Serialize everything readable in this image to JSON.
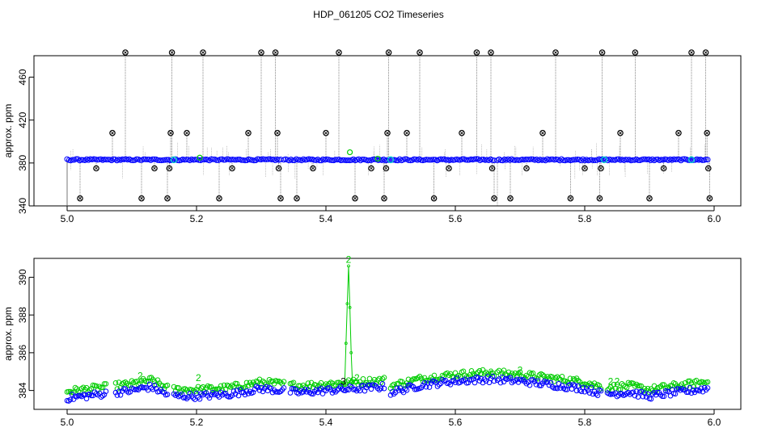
{
  "title": "HDP_061205  CO2 Timeseries",
  "colors": {
    "main": "#0000ff",
    "secondary": "#00cc00",
    "spike": "#000000",
    "highlight": "#00cccc",
    "trace": "#555555"
  },
  "chart_data": [
    {
      "type": "scatter",
      "ylabel": "approx. ppm",
      "xlim": [
        5.0,
        6.0
      ],
      "ylim": [
        340,
        480
      ],
      "xticks": [
        "5.0",
        "5.2",
        "5.4",
        "5.6",
        "5.8",
        "6.0"
      ],
      "yticks": [
        "340",
        "380",
        "420",
        "460"
      ],
      "baseline": 383,
      "segments": [
        [
          5.0,
          5.33
        ],
        [
          5.335,
          5.66
        ],
        [
          5.665,
          5.99
        ]
      ],
      "spike_points": [
        [
          5.02,
          347
        ],
        [
          5.045,
          375
        ],
        [
          5.07,
          408
        ],
        [
          5.09,
          483
        ],
        [
          5.115,
          347
        ],
        [
          5.135,
          375
        ],
        [
          5.155,
          347
        ],
        [
          5.158,
          375
        ],
        [
          5.16,
          408
        ],
        [
          5.162,
          483
        ],
        [
          5.185,
          408
        ],
        [
          5.21,
          483
        ],
        [
          5.235,
          347
        ],
        [
          5.255,
          375
        ],
        [
          5.28,
          408
        ],
        [
          5.3,
          483
        ],
        [
          5.322,
          483
        ],
        [
          5.325,
          408
        ],
        [
          5.327,
          375
        ],
        [
          5.33,
          347
        ],
        [
          5.355,
          347
        ],
        [
          5.38,
          375
        ],
        [
          5.4,
          408
        ],
        [
          5.42,
          483
        ],
        [
          5.445,
          347
        ],
        [
          5.47,
          375
        ],
        [
          5.49,
          347
        ],
        [
          5.493,
          375
        ],
        [
          5.495,
          408
        ],
        [
          5.497,
          483
        ],
        [
          5.525,
          408
        ],
        [
          5.545,
          483
        ],
        [
          5.567,
          347
        ],
        [
          5.59,
          375
        ],
        [
          5.61,
          408
        ],
        [
          5.633,
          483
        ],
        [
          5.655,
          483
        ],
        [
          5.657,
          375
        ],
        [
          5.66,
          347
        ],
        [
          5.685,
          347
        ],
        [
          5.71,
          375
        ],
        [
          5.735,
          408
        ],
        [
          5.755,
          483
        ],
        [
          5.778,
          347
        ],
        [
          5.8,
          375
        ],
        [
          5.823,
          347
        ],
        [
          5.825,
          375
        ],
        [
          5.827,
          483
        ],
        [
          5.855,
          408
        ],
        [
          5.878,
          483
        ],
        [
          5.9,
          347
        ],
        [
          5.922,
          375
        ],
        [
          5.945,
          408
        ],
        [
          5.965,
          483
        ],
        [
          5.987,
          483
        ],
        [
          5.989,
          408
        ],
        [
          5.991,
          375
        ],
        [
          5.993,
          347
        ]
      ],
      "green_points": [
        [
          5.437,
          390
        ],
        [
          5.205,
          385
        ],
        [
          5.48,
          384
        ]
      ],
      "cyan_points": [
        [
          5.165,
          383
        ],
        [
          5.5,
          383
        ],
        [
          5.83,
          383
        ],
        [
          5.965,
          383
        ]
      ]
    },
    {
      "type": "scatter",
      "ylabel": "approx. ppm",
      "xlim": [
        5.0,
        6.0
      ],
      "ylim": [
        383,
        391
      ],
      "xticks": [
        "5.0",
        "5.2",
        "5.4",
        "5.6",
        "5.8",
        "6.0"
      ],
      "yticks": [
        "384",
        "386",
        "388",
        "390"
      ],
      "series": [
        {
          "color": "#0000ff",
          "offset": 0
        },
        {
          "color": "#00cc00",
          "offset": 0.35
        }
      ],
      "segments": [
        [
          5.0,
          5.06
        ],
        [
          5.075,
          5.155
        ],
        [
          5.165,
          5.335
        ],
        [
          5.345,
          5.49
        ],
        [
          5.5,
          5.66
        ],
        [
          5.665,
          5.825
        ],
        [
          5.835,
          5.99
        ]
      ],
      "curve_knots": [
        [
          5.0,
          383.6
        ],
        [
          5.05,
          383.8
        ],
        [
          5.1,
          384.0
        ],
        [
          5.13,
          384.2
        ],
        [
          5.16,
          383.7
        ],
        [
          5.2,
          383.7
        ],
        [
          5.25,
          383.8
        ],
        [
          5.3,
          384.1
        ],
        [
          5.33,
          384.0
        ],
        [
          5.36,
          383.9
        ],
        [
          5.4,
          384.0
        ],
        [
          5.45,
          384.1
        ],
        [
          5.49,
          384.2
        ],
        [
          5.5,
          383.9
        ],
        [
          5.55,
          384.3
        ],
        [
          5.6,
          384.5
        ],
        [
          5.65,
          384.6
        ],
        [
          5.7,
          384.5
        ],
        [
          5.75,
          384.3
        ],
        [
          5.8,
          384.1
        ],
        [
          5.83,
          383.8
        ],
        [
          5.87,
          383.9
        ],
        [
          5.9,
          383.7
        ],
        [
          5.94,
          383.9
        ],
        [
          5.99,
          384.1
        ]
      ],
      "peak": {
        "x": 5.435,
        "y": 390.6,
        "label": "2"
      },
      "number_labels": [
        {
          "x": 5.113,
          "y": 384.6,
          "text": "2"
        },
        {
          "x": 5.203,
          "y": 384.5,
          "text": "2"
        },
        {
          "x": 5.427,
          "y": 384.3,
          "text": "3"
        },
        {
          "x": 5.448,
          "y": 384.5,
          "text": "2"
        },
        {
          "x": 5.655,
          "y": 384.8,
          "text": "2"
        },
        {
          "x": 5.7,
          "y": 384.9,
          "text": "2"
        },
        {
          "x": 5.84,
          "y": 384.3,
          "text": "2"
        },
        {
          "x": 5.85,
          "y": 384.3,
          "text": "2"
        }
      ]
    }
  ]
}
